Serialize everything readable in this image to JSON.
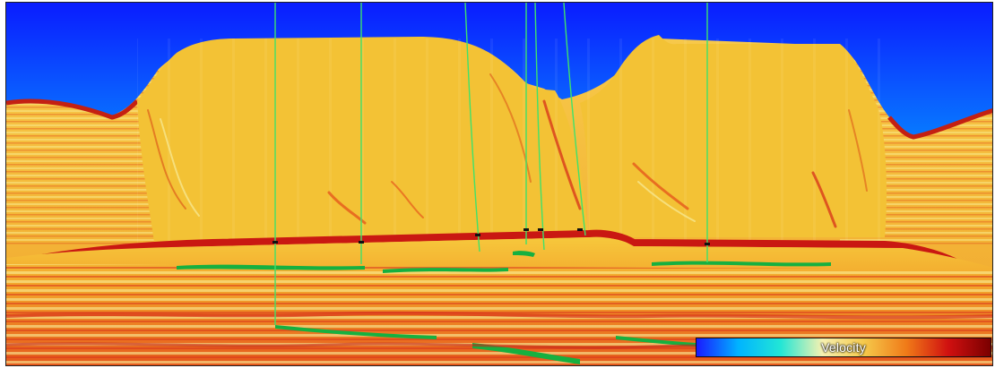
{
  "colorbar": {
    "label": "Velocity",
    "colors": [
      "#1a1aff",
      "#00b4ff",
      "#22e6d6",
      "#f7f1b0",
      "#f5c84a",
      "#f07a18",
      "#d01010",
      "#7a0000"
    ]
  },
  "palette": {
    "water_top": "#0a2cff",
    "water_mid": "#00a8ff",
    "water_bottom": "#19d3c2",
    "salt": "#f3c235",
    "salt_light": "#f6d46a",
    "sediment_red": "#d8331b",
    "sediment_orange": "#f08a1e",
    "sediment_yellow": "#f7e67a",
    "base_green": "#15b040",
    "well_line": "#3dd66b"
  }
}
